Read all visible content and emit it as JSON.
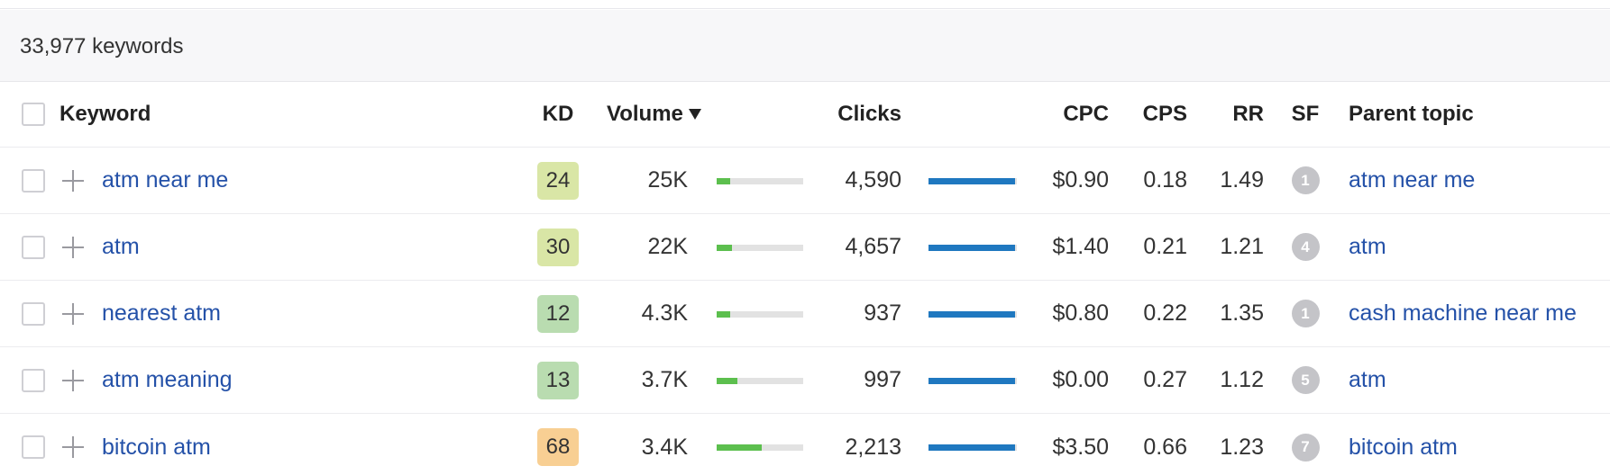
{
  "summary": {
    "count_text": "33,977 keywords"
  },
  "colors": {
    "link": "#2451a8",
    "volume_bar": "#5cbf4e",
    "clicks_bar": "#1f78c0",
    "bar_track": "#e2e2e2",
    "sf_badge": "#c4c4c8"
  },
  "icons": {
    "add": "plus-icon",
    "sort": "sort-desc-icon"
  },
  "table": {
    "headers": {
      "keyword": "Keyword",
      "kd": "KD",
      "volume": "Volume",
      "clicks": "Clicks",
      "cpc": "CPC",
      "cps": "CPS",
      "rr": "RR",
      "sf": "SF",
      "parent": "Parent topic"
    },
    "rows": [
      {
        "keyword": "atm near me",
        "kd": "24",
        "kd_color": "#d9e6a6",
        "volume": "25K",
        "volume_fill": 0.16,
        "clicks": "4,590",
        "clicks_fill": 0.98,
        "cpc": "$0.90",
        "cps": "0.18",
        "rr": "1.49",
        "sf": "1",
        "parent": "atm near me"
      },
      {
        "keyword": "atm",
        "kd": "30",
        "kd_color": "#d9e6a6",
        "volume": "22K",
        "volume_fill": 0.18,
        "clicks": "4,657",
        "clicks_fill": 0.98,
        "cpc": "$1.40",
        "cps": "0.21",
        "rr": "1.21",
        "sf": "4",
        "parent": "atm"
      },
      {
        "keyword": "nearest atm",
        "kd": "12",
        "kd_color": "#b9dcb0",
        "volume": "4.3K",
        "volume_fill": 0.16,
        "clicks": "937",
        "clicks_fill": 0.98,
        "cpc": "$0.80",
        "cps": "0.22",
        "rr": "1.35",
        "sf": "1",
        "parent": "cash machine near me"
      },
      {
        "keyword": "atm meaning",
        "kd": "13",
        "kd_color": "#b9dcb0",
        "volume": "3.7K",
        "volume_fill": 0.24,
        "clicks": "997",
        "clicks_fill": 0.98,
        "cpc": "$0.00",
        "cps": "0.27",
        "rr": "1.12",
        "sf": "5",
        "parent": "atm"
      },
      {
        "keyword": "bitcoin atm",
        "kd": "68",
        "kd_color": "#f8cf93",
        "volume": "3.4K",
        "volume_fill": 0.52,
        "clicks": "2,213",
        "clicks_fill": 0.98,
        "cpc": "$3.50",
        "cps": "0.66",
        "rr": "1.23",
        "sf": "7",
        "parent": "bitcoin atm"
      }
    ]
  }
}
